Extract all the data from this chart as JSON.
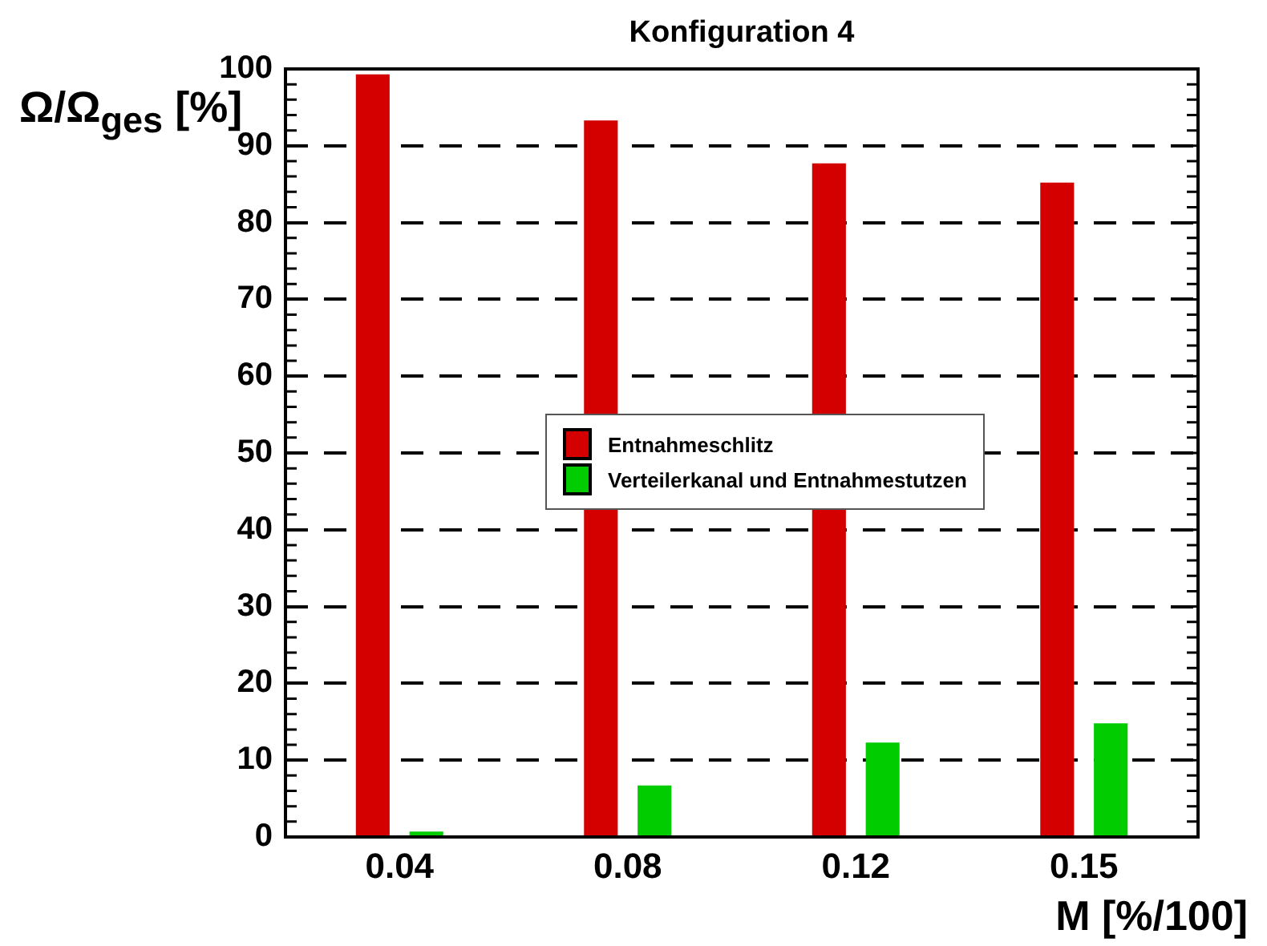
{
  "chart_data": {
    "type": "bar",
    "title": "Konfiguration 4",
    "xlabel": "M [%/100]",
    "ylabel": "Ω/Ω$_{ges}$ [%]",
    "categories": [
      "0.04",
      "0.08",
      "0.12",
      "0.15"
    ],
    "series": [
      {
        "name": "Entnahmeschlitz",
        "color": "#d40000",
        "values": [
          99.3,
          93.3,
          87.7,
          85.2
        ]
      },
      {
        "name": "Verteilerkanal und Entnahmestutzen",
        "color": "#00cc00",
        "values": [
          0.7,
          6.7,
          12.3,
          14.8
        ]
      }
    ],
    "ylim": [
      0,
      100
    ],
    "yticks": [
      0,
      10,
      20,
      30,
      40,
      50,
      60,
      70,
      80,
      90,
      100
    ],
    "grid": "y",
    "legend": "center"
  }
}
